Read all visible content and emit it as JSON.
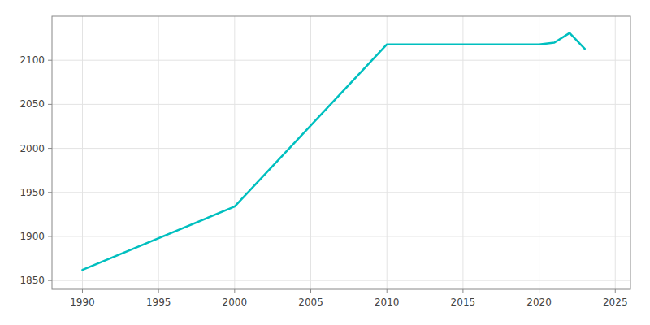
{
  "chart_data": {
    "type": "line",
    "x": [
      1990,
      2000,
      2010,
      2020,
      2021,
      2022,
      2023
    ],
    "values": [
      1862,
      1934,
      2118,
      2118,
      2120,
      2131,
      2113
    ],
    "color": "#00BFBF",
    "xlim": [
      1988,
      2026
    ],
    "ylim": [
      1840,
      2150
    ],
    "xticks": [
      1990,
      1995,
      2000,
      2005,
      2010,
      2015,
      2020,
      2025
    ],
    "yticks": [
      1850,
      1900,
      1950,
      2000,
      2050,
      2100
    ],
    "grid": true
  }
}
